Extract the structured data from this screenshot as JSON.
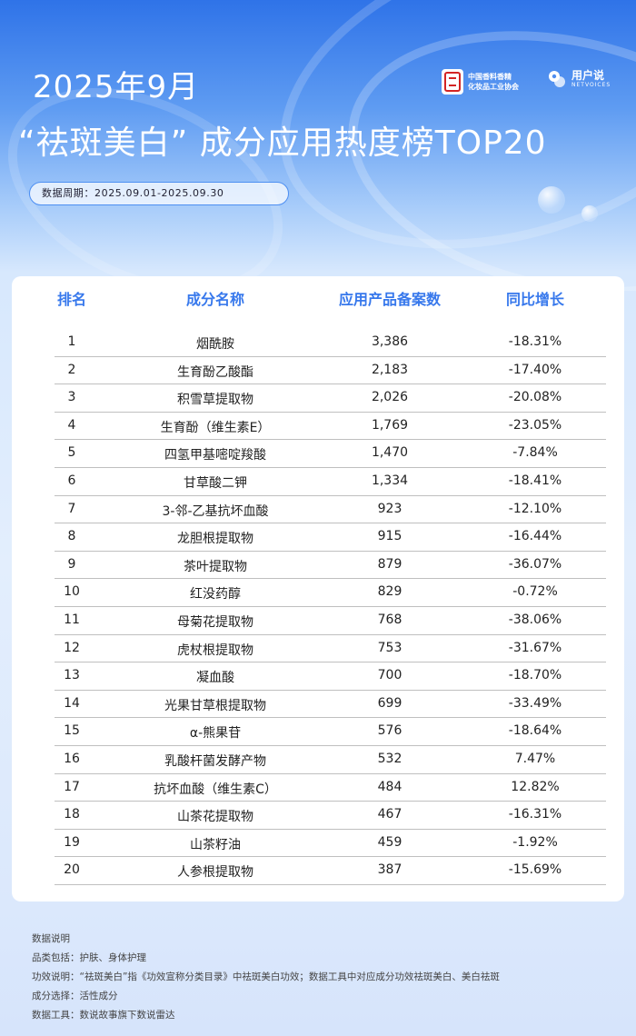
{
  "header": {
    "date_title": "2025年9月",
    "main_title": "“祛斑美白” 成分应用热度榜TOP20",
    "period": "数据周期：2025.09.01-2025.09.30",
    "logos": {
      "org_lines": [
        "中国香料香精",
        "化妆品工业协会"
      ],
      "org_seal": "中香 香协",
      "brand_name": "用户说",
      "brand_sub": "NETVOICES"
    }
  },
  "table": {
    "columns": [
      "排名",
      "成分名称",
      "应用产品备案数",
      "同比增长"
    ],
    "rows": [
      {
        "rank": "1",
        "name": "烟酰胺",
        "count": "3,386",
        "growth": "-18.31%"
      },
      {
        "rank": "2",
        "name": "生育酚乙酸酯",
        "count": "2,183",
        "growth": "-17.40%"
      },
      {
        "rank": "3",
        "name": "积雪草提取物",
        "count": "2,026",
        "growth": "-20.08%"
      },
      {
        "rank": "4",
        "name": "生育酚（维生素E）",
        "count": "1,769",
        "growth": "-23.05%"
      },
      {
        "rank": "5",
        "name": "四氢甲基嘧啶羧酸",
        "count": "1,470",
        "growth": "-7.84%"
      },
      {
        "rank": "6",
        "name": "甘草酸二钾",
        "count": "1,334",
        "growth": "-18.41%"
      },
      {
        "rank": "7",
        "name": "3-邻-乙基抗坏血酸",
        "count": "923",
        "growth": "-12.10%"
      },
      {
        "rank": "8",
        "name": "龙胆根提取物",
        "count": "915",
        "growth": "-16.44%"
      },
      {
        "rank": "9",
        "name": "茶叶提取物",
        "count": "879",
        "growth": "-36.07%"
      },
      {
        "rank": "10",
        "name": "红没药醇",
        "count": "829",
        "growth": "-0.72%"
      },
      {
        "rank": "11",
        "name": "母菊花提取物",
        "count": "768",
        "growth": "-38.06%"
      },
      {
        "rank": "12",
        "name": "虎杖根提取物",
        "count": "753",
        "growth": "-31.67%"
      },
      {
        "rank": "13",
        "name": "凝血酸",
        "count": "700",
        "growth": "-18.70%"
      },
      {
        "rank": "14",
        "name": "光果甘草根提取物",
        "count": "699",
        "growth": "-33.49%"
      },
      {
        "rank": "15",
        "name": "α-熊果苷",
        "count": "576",
        "growth": "-18.64%"
      },
      {
        "rank": "16",
        "name": "乳酸杆菌发酵产物",
        "count": "532",
        "growth": "7.47%"
      },
      {
        "rank": "17",
        "name": "抗坏血酸（维生素C）",
        "count": "484",
        "growth": "12.82%"
      },
      {
        "rank": "18",
        "name": "山茶花提取物",
        "count": "467",
        "growth": "-16.31%"
      },
      {
        "rank": "19",
        "name": "山茶籽油",
        "count": "459",
        "growth": "-1.92%"
      },
      {
        "rank": "20",
        "name": "人参根提取物",
        "count": "387",
        "growth": "-15.69%"
      }
    ]
  },
  "notes": [
    "数据说明",
    "品类包括：护肤、身体护理",
    "功效说明：“祛斑美白”指《功效宣称分类目录》中祛斑美白功效；数据工具中对应成分功效祛斑美白、美白祛斑",
    "成分选择：活性成分",
    "数据工具：数说故事旗下数说雷达"
  ],
  "colors": {
    "header_blue": "#2f73e8",
    "column_header": "#3778ec",
    "card_bg": "#ffffff",
    "page_bg_light": "#dbe8fc"
  }
}
